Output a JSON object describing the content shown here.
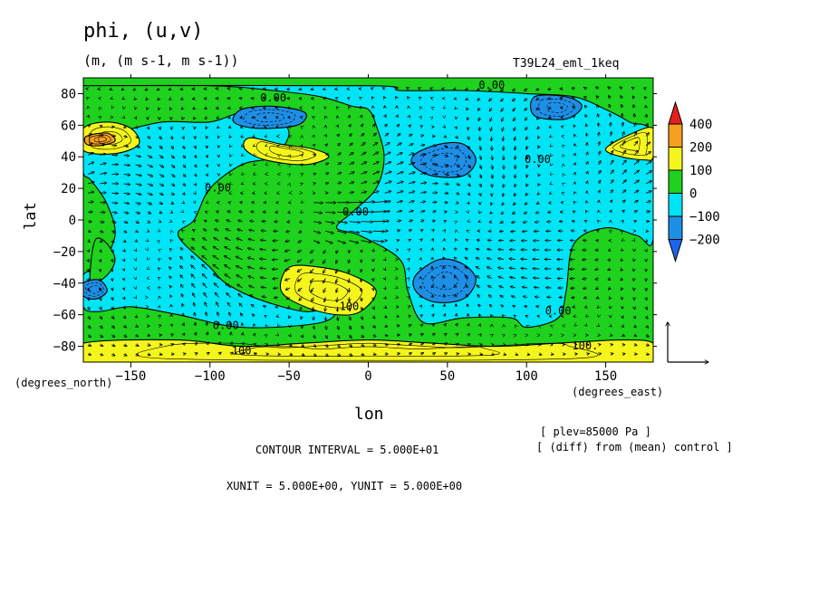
{
  "header": {
    "title": "phi, (u,v)",
    "units": "(m, (m s-1, m s-1))",
    "case": "T39L24_eml_1keq"
  },
  "footer": {
    "level": "[ plev=85000 Pa ]",
    "diff": "[ (diff) from (mean) control ]",
    "contour_interval": "CONTOUR INTERVAL = 5.000E+01",
    "vector_units": "XUNIT = 5.000E+00, YUNIT = 5.000E+00"
  },
  "colors": {
    "lt_m100": "#1e8fe6",
    "m100_0": "#00e5f5",
    "0_100": "#1ed21e",
    "100_200": "#f5f51e",
    "200_400": "#f5a01e",
    "gt_400": "#e61e1e",
    "below_m200": "#1e64e6"
  },
  "chart_data": {
    "type": "heatmap",
    "title": "phi, (u,v)",
    "xlabel": "lon",
    "ylabel": "lat",
    "x_unit_label": "(degrees_east)",
    "y_unit_label": "(degrees_north)",
    "xlim": [
      -180,
      180
    ],
    "ylim": [
      -90,
      90
    ],
    "x_ticks": [
      -150,
      -100,
      -50,
      0,
      50,
      100,
      150
    ],
    "y_ticks": [
      80,
      60,
      40,
      20,
      0,
      -20,
      -40,
      -60,
      -80
    ],
    "colorbar_levels": [
      -200,
      -100,
      0,
      100,
      200,
      400
    ],
    "contour_labels": [
      {
        "text": "0.00",
        "lon": -60,
        "lat": 77
      },
      {
        "text": "0.00",
        "lon": 78,
        "lat": 85
      },
      {
        "text": "0.00",
        "lon": -95,
        "lat": 20
      },
      {
        "text": "0.00",
        "lon": 107,
        "lat": 38
      },
      {
        "text": "0.00",
        "lon": -8,
        "lat": 5
      },
      {
        "text": "0.00",
        "lon": -90,
        "lat": -67
      },
      {
        "text": "0.00",
        "lon": 120,
        "lat": -58
      },
      {
        "text": "100.",
        "lon": -10,
        "lat": -55
      },
      {
        "text": "100.",
        "lon": -78,
        "lat": -83
      },
      {
        "text": "100.",
        "lon": 137,
        "lat": -80
      }
    ],
    "regions": [
      {
        "level": "m100_0",
        "points": [
          [
            -180,
            85
          ],
          [
            -100,
            85
          ],
          [
            -60,
            82
          ],
          [
            -30,
            78
          ],
          [
            -10,
            72
          ],
          [
            0,
            70
          ],
          [
            5,
            60
          ],
          [
            10,
            40
          ],
          [
            5,
            20
          ],
          [
            -10,
            5
          ],
          [
            -20,
            -5
          ],
          [
            -5,
            -10
          ],
          [
            20,
            -25
          ],
          [
            25,
            -45
          ],
          [
            35,
            -65
          ],
          [
            60,
            -62
          ],
          [
            90,
            -62
          ],
          [
            100,
            -68
          ],
          [
            120,
            -62
          ],
          [
            125,
            -45
          ],
          [
            130,
            -15
          ],
          [
            150,
            -5
          ],
          [
            170,
            -10
          ],
          [
            180,
            -12
          ],
          [
            180,
            52
          ],
          [
            165,
            62
          ],
          [
            150,
            70
          ],
          [
            130,
            78
          ],
          [
            100,
            80
          ],
          [
            60,
            82
          ],
          [
            20,
            82
          ],
          [
            0,
            85
          ],
          [
            -180,
            85
          ]
        ]
      },
      {
        "level": "m100_0",
        "points": [
          [
            -180,
            50
          ],
          [
            -160,
            55
          ],
          [
            -130,
            62
          ],
          [
            -100,
            62
          ],
          [
            -80,
            68
          ],
          [
            -60,
            65
          ],
          [
            -50,
            55
          ],
          [
            -60,
            40
          ],
          [
            -80,
            35
          ],
          [
            -100,
            20
          ],
          [
            -110,
            0
          ],
          [
            -120,
            -10
          ],
          [
            -100,
            -30
          ],
          [
            -90,
            -40
          ],
          [
            -70,
            -50
          ],
          [
            -40,
            -58
          ],
          [
            -20,
            -55
          ],
          [
            -30,
            -65
          ],
          [
            -80,
            -68
          ],
          [
            -120,
            -60
          ],
          [
            -150,
            -55
          ],
          [
            -170,
            -58
          ],
          [
            -180,
            -55
          ],
          [
            -180,
            -35
          ],
          [
            -170,
            -30
          ],
          [
            -160,
            -10
          ],
          [
            -165,
            10
          ],
          [
            -175,
            25
          ],
          [
            -180,
            30
          ]
        ]
      },
      {
        "level": "0_100",
        "points": [
          [
            -175,
            -40
          ],
          [
            -165,
            -35
          ],
          [
            -160,
            -25
          ],
          [
            -165,
            -15
          ],
          [
            -172,
            -12
          ],
          [
            -175,
            -25
          ]
        ]
      },
      {
        "level": "100_200",
        "points": [
          [
            -180,
            58
          ],
          [
            -165,
            62
          ],
          [
            -150,
            58
          ],
          [
            -145,
            48
          ],
          [
            -160,
            42
          ],
          [
            -180,
            44
          ]
        ]
      },
      {
        "level": "200_400",
        "points": [
          [
            -178,
            53
          ],
          [
            -165,
            55
          ],
          [
            -160,
            50
          ],
          [
            -170,
            47
          ],
          [
            -178,
            48
          ]
        ]
      },
      {
        "level": "100_200",
        "points": [
          [
            -75,
            52
          ],
          [
            -55,
            48
          ],
          [
            -35,
            45
          ],
          [
            -25,
            40
          ],
          [
            -40,
            35
          ],
          [
            -65,
            38
          ],
          [
            -78,
            45
          ]
        ]
      },
      {
        "level": "100_200",
        "points": [
          [
            180,
            58
          ],
          [
            165,
            54
          ],
          [
            150,
            45
          ],
          [
            160,
            40
          ],
          [
            175,
            38
          ],
          [
            180,
            40
          ]
        ]
      },
      {
        "level": "100_200",
        "points": [
          [
            -50,
            -30
          ],
          [
            -30,
            -30
          ],
          [
            -10,
            -35
          ],
          [
            5,
            -45
          ],
          [
            -5,
            -58
          ],
          [
            -20,
            -60
          ],
          [
            -40,
            -55
          ],
          [
            -55,
            -45
          ]
        ]
      },
      {
        "level": "lt_m100",
        "points": [
          [
            -80,
            70
          ],
          [
            -60,
            72
          ],
          [
            -40,
            68
          ],
          [
            -45,
            60
          ],
          [
            -70,
            58
          ],
          [
            -85,
            62
          ]
        ]
      },
      {
        "level": "lt_m100",
        "points": [
          [
            105,
            78
          ],
          [
            125,
            78
          ],
          [
            135,
            72
          ],
          [
            125,
            64
          ],
          [
            105,
            66
          ]
        ]
      },
      {
        "level": "lt_m100",
        "points": [
          [
            30,
            42
          ],
          [
            45,
            48
          ],
          [
            60,
            48
          ],
          [
            68,
            38
          ],
          [
            60,
            28
          ],
          [
            40,
            28
          ],
          [
            28,
            35
          ]
        ]
      },
      {
        "level": "lt_m100",
        "points": [
          [
            30,
            -35
          ],
          [
            45,
            -25
          ],
          [
            60,
            -28
          ],
          [
            68,
            -38
          ],
          [
            60,
            -50
          ],
          [
            42,
            -52
          ],
          [
            30,
            -45
          ]
        ]
      },
      {
        "level": "lt_m100",
        "points": [
          [
            -180,
            -40
          ],
          [
            -170,
            -38
          ],
          [
            -165,
            -45
          ],
          [
            -172,
            -50
          ],
          [
            -180,
            -48
          ]
        ]
      },
      {
        "level": "100_200",
        "points": [
          [
            -180,
            -78
          ],
          [
            -120,
            -76
          ],
          [
            -80,
            -80
          ],
          [
            -40,
            -78
          ],
          [
            0,
            -76
          ],
          [
            40,
            -78
          ],
          [
            80,
            -80
          ],
          [
            120,
            -78
          ],
          [
            160,
            -76
          ],
          [
            180,
            -78
          ],
          [
            180,
            -90
          ],
          [
            -180,
            -90
          ]
        ]
      }
    ]
  }
}
